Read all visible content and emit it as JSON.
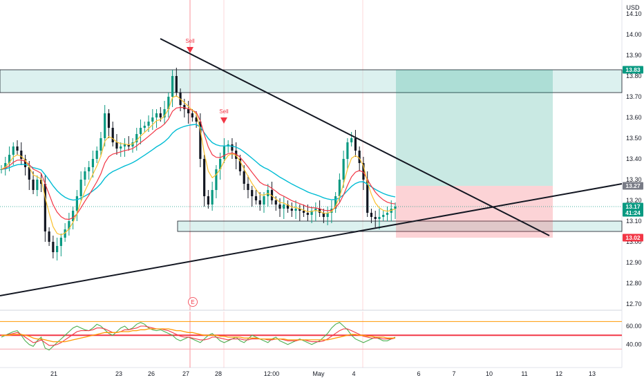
{
  "currency": "USD",
  "chart_data": [
    {
      "type": "candlestick",
      "ylim": [
        12.7,
        14.1
      ],
      "y_ticks": [
        "14.10",
        "14.00",
        "13.90",
        "13.80",
        "13.70",
        "13.60",
        "13.50",
        "13.40",
        "13.30",
        "13.20",
        "13.10",
        "13.00",
        "12.90",
        "12.80",
        "12.70"
      ],
      "x_ticks": [
        "21",
        "23",
        "26",
        "27",
        "28",
        "12:00",
        "May",
        "4",
        "6",
        "7",
        "10",
        "11",
        "12",
        "13"
      ],
      "price_tags": [
        {
          "label": "13.83",
          "value": 13.83,
          "color": "#089981"
        },
        {
          "label": "13.27",
          "value": 13.27,
          "color": "#787b86"
        },
        {
          "label": "13.17",
          "sub": "41:24",
          "value": 13.17,
          "color": "#089981"
        },
        {
          "label": "13.02",
          "value": 13.02,
          "color": "#f23645"
        }
      ],
      "zones": [
        {
          "name": "resistance-zone",
          "from": 13.72,
          "to": 13.83
        },
        {
          "name": "support-zone",
          "from": 13.05,
          "to": 13.1
        }
      ],
      "position": {
        "entry": 13.27,
        "target": 13.83,
        "stop": 13.02
      },
      "signals": [
        {
          "label": "Sell",
          "price": 13.92
        },
        {
          "label": "Sell",
          "price": 13.58
        }
      ],
      "event": "E",
      "closes": [
        13.35,
        13.38,
        13.42,
        13.46,
        13.44,
        13.4,
        13.36,
        13.3,
        13.25,
        13.3,
        13.28,
        13.05,
        13.0,
        12.95,
        12.98,
        13.02,
        13.06,
        13.1,
        13.15,
        13.22,
        13.3,
        13.34,
        13.36,
        13.4,
        13.44,
        13.5,
        13.62,
        13.55,
        13.48,
        13.45,
        13.46,
        13.47,
        13.46,
        13.48,
        13.52,
        13.55,
        13.56,
        13.58,
        13.6,
        13.62,
        13.6,
        13.64,
        13.7,
        13.8,
        13.72,
        13.66,
        13.64,
        13.62,
        13.6,
        13.58,
        13.4,
        13.22,
        13.18,
        13.25,
        13.35,
        13.4,
        13.46,
        13.47,
        13.44,
        13.4,
        13.34,
        13.28,
        13.25,
        13.22,
        13.2,
        13.18,
        13.22,
        13.25,
        13.2,
        13.18,
        13.16,
        13.18,
        13.16,
        13.15,
        13.16,
        13.15,
        13.14,
        13.13,
        13.15,
        13.16,
        13.14,
        13.12,
        13.14,
        13.16,
        13.22,
        13.3,
        13.4,
        13.48,
        13.5,
        13.44,
        13.38,
        13.3,
        13.14,
        13.12,
        13.11,
        13.12,
        13.13,
        13.14,
        13.16,
        13.17
      ]
    },
    {
      "type": "line",
      "ylim": [
        30,
        70
      ],
      "y_ticks": [
        "60.00",
        "40.00"
      ],
      "levels": [
        65,
        50,
        35
      ],
      "series": [
        {
          "color": "#4caf50",
          "values": [
            48,
            50,
            52,
            54,
            55,
            50,
            44,
            40,
            38,
            44,
            48,
            36,
            34,
            38,
            42,
            46,
            50,
            54,
            58,
            60,
            58,
            56,
            55,
            58,
            62,
            60,
            56,
            52,
            50,
            54,
            58,
            60,
            56,
            58,
            62,
            64,
            62,
            58,
            56,
            55,
            56,
            54,
            52,
            50,
            46,
            44,
            46,
            48,
            46,
            44,
            42,
            46,
            50,
            52,
            48,
            44,
            42,
            44,
            46,
            48,
            44,
            42,
            46,
            50,
            48,
            46,
            44,
            42,
            46,
            48,
            44,
            42,
            40,
            42,
            44,
            46,
            44,
            42,
            40,
            42,
            44,
            48,
            52,
            58,
            62,
            64,
            60,
            56,
            50,
            46,
            44,
            42,
            44,
            46,
            48,
            46,
            44,
            44,
            46,
            48
          ]
        },
        {
          "color": "#f23645",
          "values": [
            50,
            50,
            51,
            52,
            53,
            51,
            48,
            45,
            42,
            43,
            45,
            42,
            39,
            39,
            40,
            42,
            45,
            48,
            51,
            54,
            55,
            55,
            55,
            56,
            58,
            58,
            57,
            55,
            53,
            53,
            54,
            56,
            56,
            57,
            58,
            60,
            60,
            59,
            58,
            57,
            57,
            56,
            55,
            53,
            51,
            49,
            48,
            48,
            47,
            46,
            45,
            45,
            46,
            48,
            48,
            47,
            46,
            45,
            46,
            46,
            46,
            45,
            45,
            46,
            46,
            46,
            46,
            45,
            45,
            46,
            46,
            45,
            44,
            44,
            44,
            45,
            45,
            44,
            43,
            43,
            43,
            44,
            46,
            49,
            52,
            55,
            57,
            57,
            55,
            53,
            51,
            49,
            48,
            47,
            47,
            47,
            46,
            46,
            46,
            47
          ]
        },
        {
          "color": "#ff9800",
          "values": [
            50,
            50,
            50,
            51,
            51,
            51,
            50,
            49,
            47,
            46,
            46,
            45,
            44,
            43,
            43,
            43,
            43,
            44,
            45,
            46,
            47,
            48,
            49,
            50,
            51,
            52,
            53,
            53,
            53,
            53,
            54,
            54,
            54,
            55,
            55,
            56,
            56,
            57,
            57,
            57,
            57,
            57,
            57,
            56,
            55,
            55,
            54,
            53,
            53,
            52,
            51,
            50,
            50,
            50,
            50,
            49,
            49,
            48,
            48,
            48,
            48,
            47,
            47,
            47,
            47,
            46,
            46,
            46,
            46,
            46,
            46,
            46,
            45,
            45,
            45,
            45,
            45,
            45,
            45,
            45,
            45,
            45,
            45,
            46,
            47,
            48,
            49,
            50,
            51,
            51,
            50,
            50,
            49,
            49,
            48,
            48,
            48,
            47,
            47,
            47
          ]
        }
      ]
    }
  ]
}
